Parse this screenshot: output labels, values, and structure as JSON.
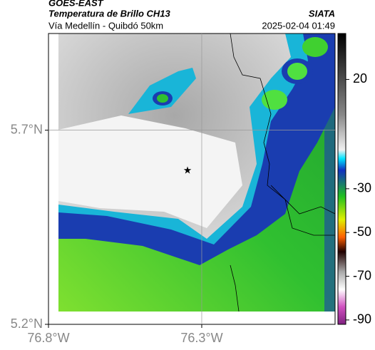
{
  "header": {
    "title": "GOES-EAST",
    "subtitle": "Temperatura de Brillo CH13",
    "region": "Vía Medellín - Quibdó 50km",
    "source": "SIATA",
    "datetime": "2025-02-04 01:49"
  },
  "map": {
    "xlim": [
      -76.8,
      -75.865
    ],
    "ylim": [
      5.2,
      5.949
    ],
    "xticks": [
      {
        "value": -76.8,
        "label": "76.8°W"
      },
      {
        "value": -76.3,
        "label": "76.3°W"
      }
    ],
    "yticks": [
      {
        "value": 5.7,
        "label": "5.7°N"
      },
      {
        "value": 5.2,
        "label": "5.2°N"
      }
    ]
  },
  "colorbar": {
    "clim": [
      -92,
      41
    ],
    "ticks": [
      20,
      -30,
      -50,
      -70,
      -90
    ]
  }
}
